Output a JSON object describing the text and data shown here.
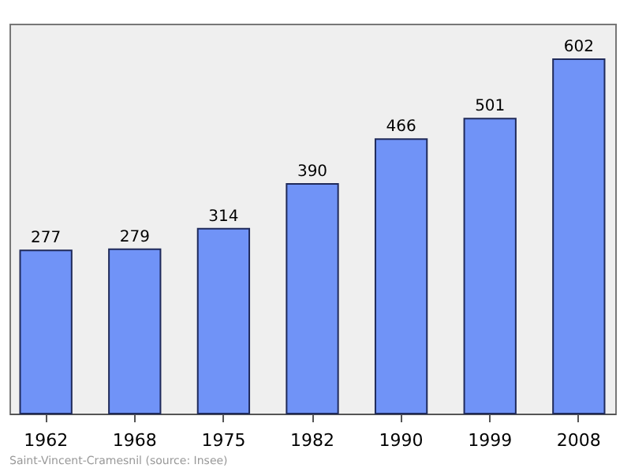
{
  "chart_data": {
    "type": "bar",
    "categories": [
      "1962",
      "1968",
      "1975",
      "1982",
      "1990",
      "1999",
      "2008"
    ],
    "values": [
      277,
      279,
      314,
      390,
      466,
      501,
      602
    ],
    "color": "#7093f7",
    "data_labels": true,
    "annotations": [
      "Saint-Vincent-Cramesnil    (source: Insee)"
    ]
  }
}
